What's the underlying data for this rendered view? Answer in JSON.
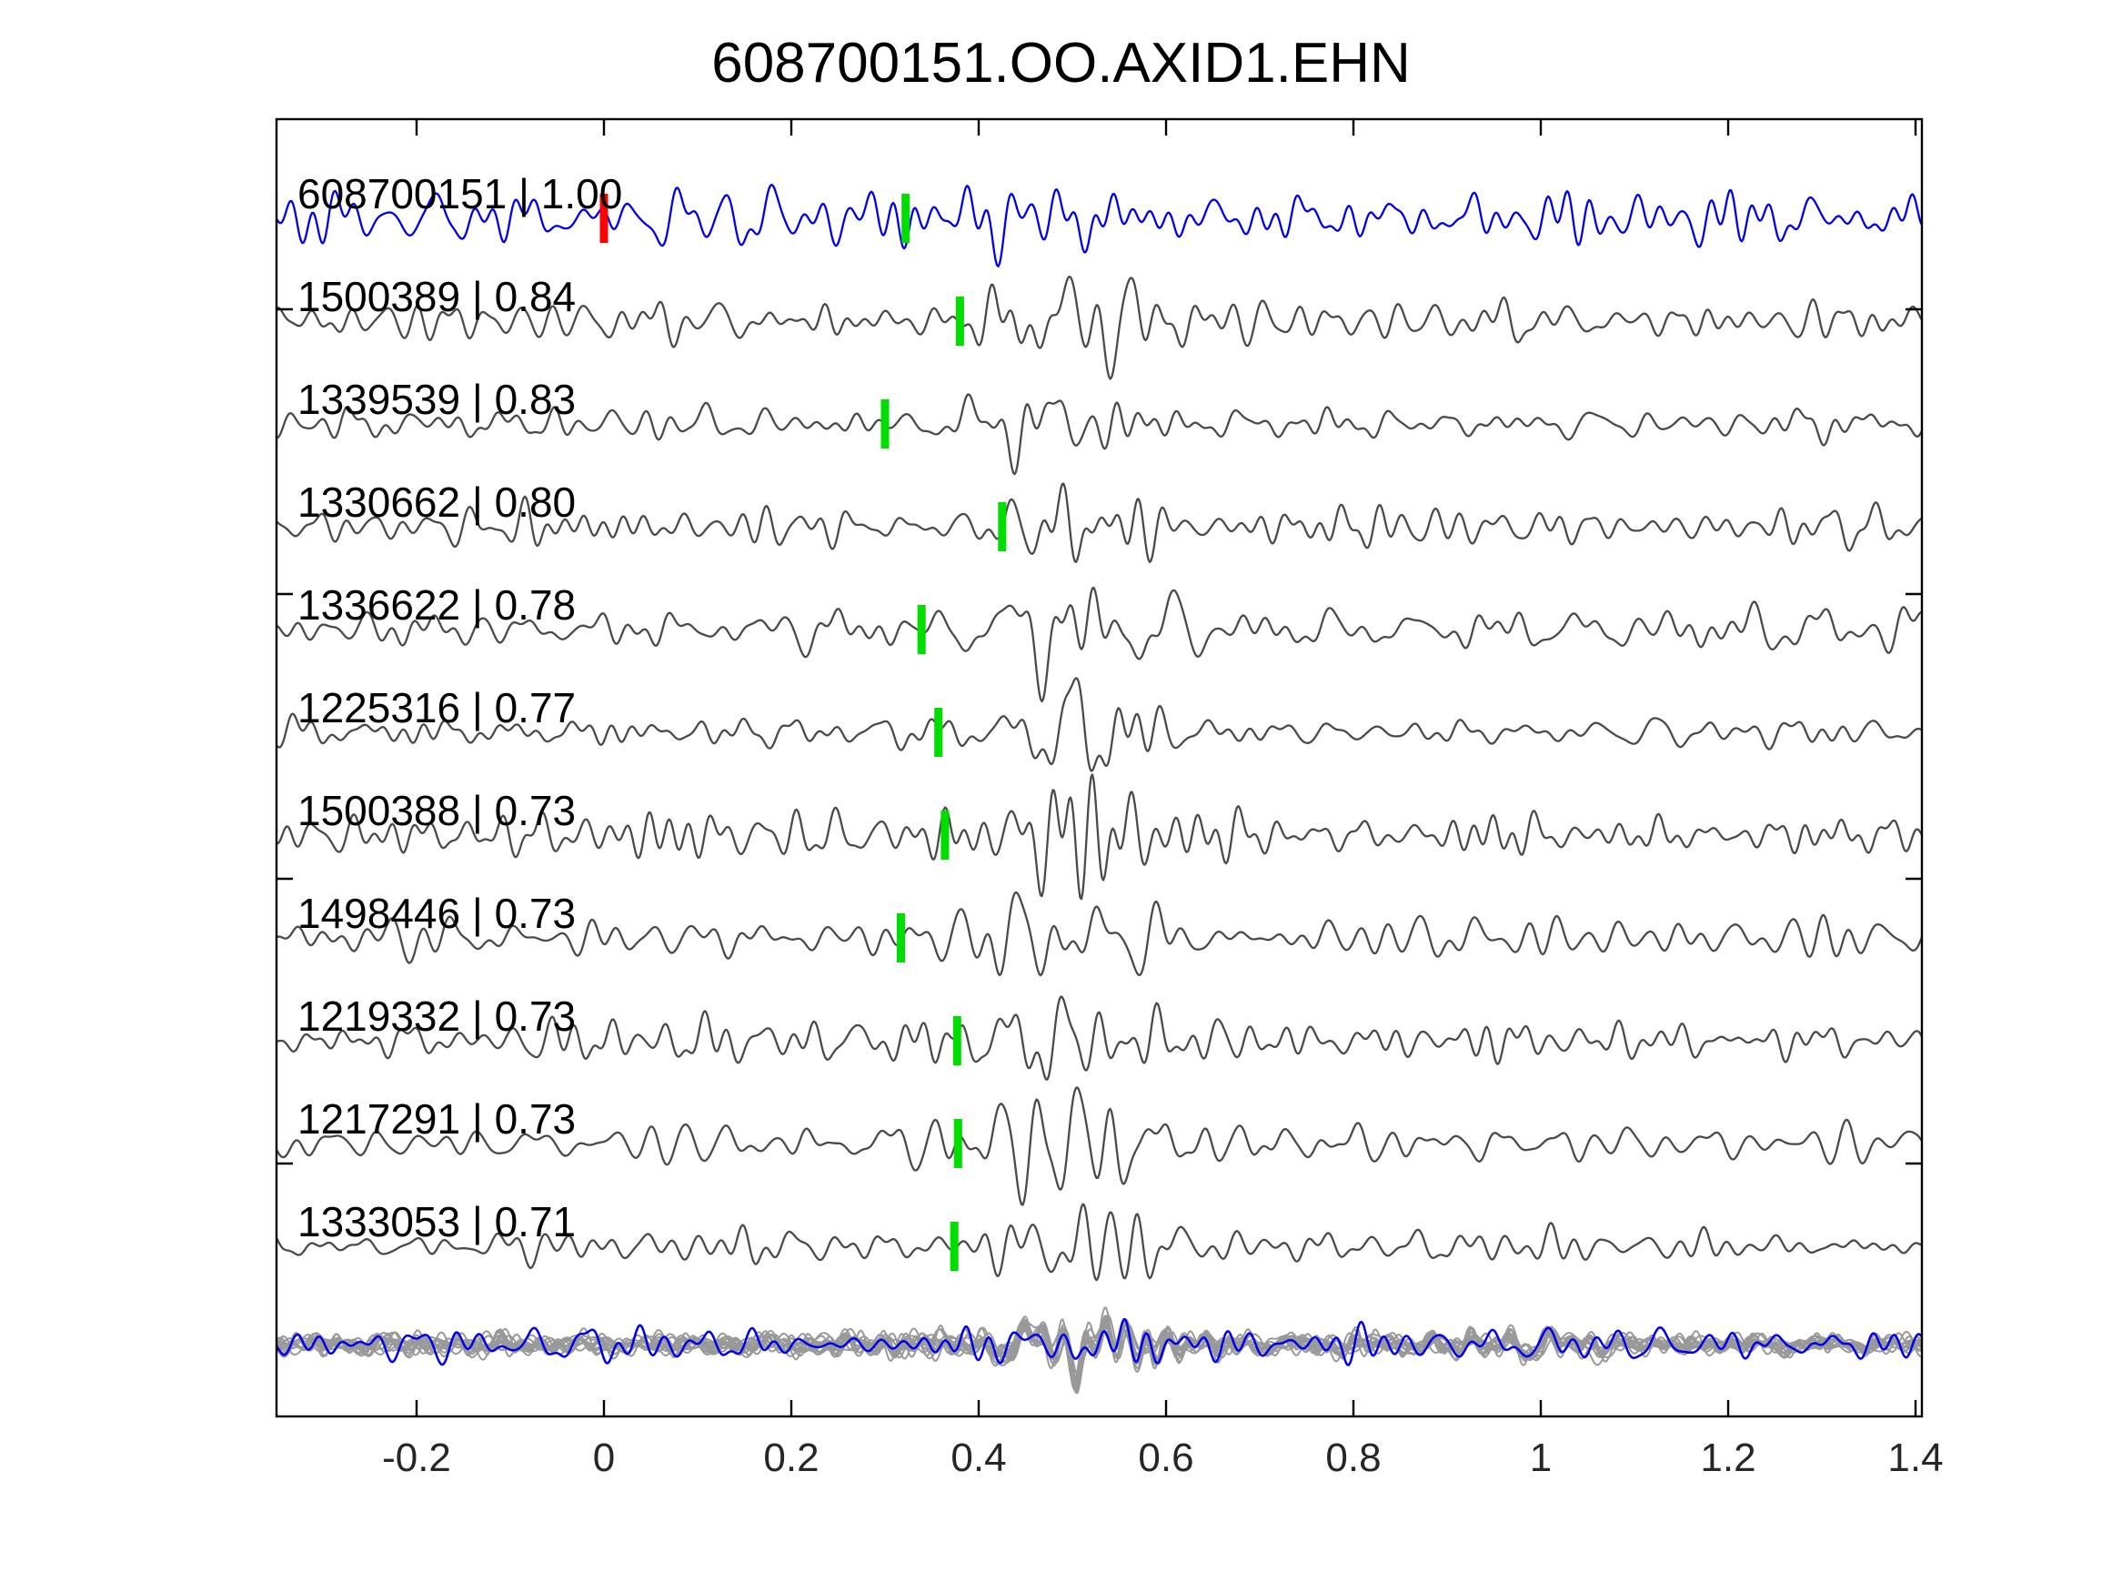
{
  "title": "608700151.OO.AXID1.EHN",
  "chart_data": {
    "type": "line",
    "title": "608700151.OO.AXID1.EHN",
    "description": "Seismic waveform cross-correlation panel: blue template trace at top, 10 correlated member traces below (trace id | correlation coefficient), green bars mark pick times, red bar marks template reference time, bottom row is the overlay stack of all aligned traces (gray) with the template in blue.",
    "x_axis": {
      "min": -0.35,
      "max": 1.407,
      "ticks": [
        -0.2,
        0,
        0.2,
        0.4,
        0.6,
        0.8,
        1,
        1.2,
        1.4
      ],
      "gridlines": false
    },
    "x_tick_labels": [
      "-0.2",
      "0",
      "0.2",
      "0.4",
      "0.6",
      "0.8",
      "1",
      "1.2",
      "1.4"
    ],
    "y_tick_labels": [],
    "legend": "none",
    "colors": {
      "template_trace": "#0000ee",
      "member_trace": "#4a4a4a",
      "stack_gray": "#999999",
      "stack_overlay": "#0000ee",
      "pick_green": "#00dd00",
      "pick_red": "#ff0000",
      "axis": "#000000",
      "background": "#ffffff"
    },
    "traces": [
      {
        "id": "608700151",
        "correlation": "1.00",
        "label": "608700151 | 1.00",
        "color": "#0000ee",
        "picks": [
          {
            "x": 0.0,
            "color": "#ff0000",
            "name": "reference-pick"
          },
          {
            "x": 0.322,
            "color": "#00dd00",
            "name": "pick"
          }
        ]
      },
      {
        "id": "1500389",
        "correlation": "0.84",
        "label": "1500389 | 0.84",
        "color": "#4a4a4a",
        "picks": [
          {
            "x": 0.38,
            "color": "#00dd00",
            "name": "pick"
          }
        ]
      },
      {
        "id": "1339539",
        "correlation": "0.83",
        "label": "1339539 | 0.83",
        "color": "#4a4a4a",
        "picks": [
          {
            "x": 0.3,
            "color": "#00dd00",
            "name": "pick"
          }
        ]
      },
      {
        "id": "1330662",
        "correlation": "0.80",
        "label": "1330662 | 0.80",
        "color": "#4a4a4a",
        "picks": [
          {
            "x": 0.425,
            "color": "#00dd00",
            "name": "pick"
          }
        ]
      },
      {
        "id": "1336622",
        "correlation": "0.78",
        "label": "1336622 | 0.78",
        "color": "#4a4a4a",
        "picks": [
          {
            "x": 0.339,
            "color": "#00dd00",
            "name": "pick"
          }
        ]
      },
      {
        "id": "1225316",
        "correlation": "0.77",
        "label": "1225316 | 0.77",
        "color": "#4a4a4a",
        "picks": [
          {
            "x": 0.357,
            "color": "#00dd00",
            "name": "pick"
          }
        ]
      },
      {
        "id": "1500388",
        "correlation": "0.73",
        "label": "1500388 | 0.73",
        "color": "#4a4a4a",
        "picks": [
          {
            "x": 0.364,
            "color": "#00dd00",
            "name": "pick"
          }
        ]
      },
      {
        "id": "1498446",
        "correlation": "0.73",
        "label": "1498446 | 0.73",
        "color": "#4a4a4a",
        "picks": [
          {
            "x": 0.317,
            "color": "#00dd00",
            "name": "pick"
          }
        ]
      },
      {
        "id": "1219332",
        "correlation": "0.73",
        "label": "1219332 | 0.73",
        "color": "#4a4a4a",
        "picks": [
          {
            "x": 0.377,
            "color": "#00dd00",
            "name": "pick"
          }
        ]
      },
      {
        "id": "1217291",
        "correlation": "0.73",
        "label": "1217291 | 0.73",
        "color": "#4a4a4a",
        "picks": [
          {
            "x": 0.378,
            "color": "#00dd00",
            "name": "pick"
          }
        ]
      },
      {
        "id": "1333053",
        "correlation": "0.71",
        "label": "1333053 | 0.71",
        "color": "#4a4a4a",
        "picks": [
          {
            "x": 0.374,
            "color": "#00dd00",
            "name": "pick"
          }
        ]
      }
    ],
    "stack": {
      "gray_trace_count": 14,
      "gray_color": "#999999",
      "overlay_color": "#0000ee"
    }
  }
}
